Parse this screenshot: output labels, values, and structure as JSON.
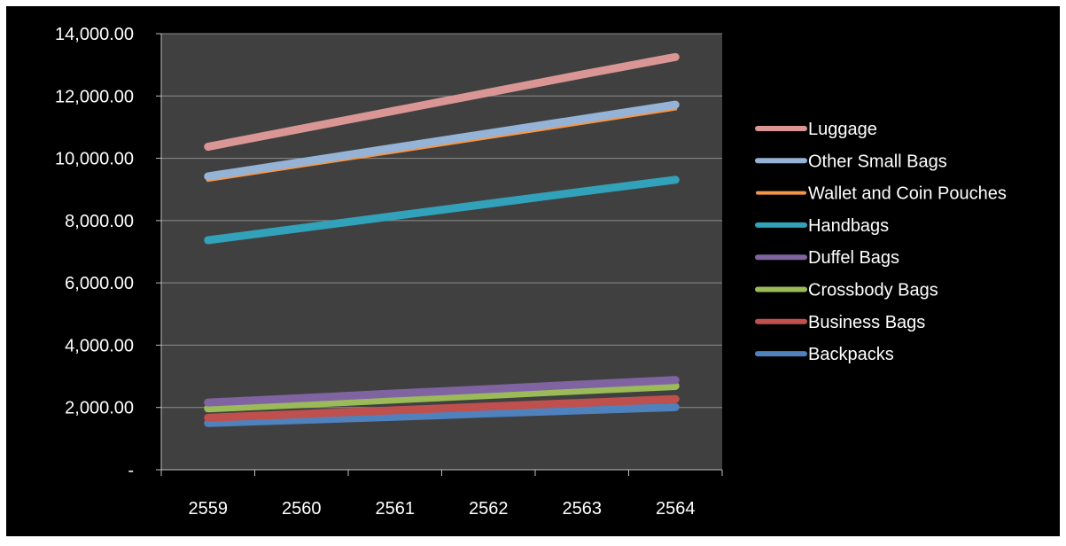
{
  "chart_data": {
    "type": "line",
    "title": "",
    "xlabel": "",
    "ylabel": "",
    "categories": [
      "2559",
      "2560",
      "2561",
      "2562",
      "2563",
      "2564"
    ],
    "ylim": [
      0,
      14000
    ],
    "yticks": [
      0,
      2000,
      4000,
      6000,
      8000,
      10000,
      12000,
      14000
    ],
    "ytick_labels": [
      "-",
      "2,000.00",
      "4,000.00",
      "6,000.00",
      "8,000.00",
      "10,000.00",
      "12,000.00",
      "14,000.00"
    ],
    "grid": true,
    "legend_position": "right",
    "colors": {
      "page_background": "#000000",
      "plot_background": "#404040",
      "gridline": "#8c8c8c",
      "axis": "#bfbfbf",
      "text": "#ffffff"
    },
    "series": [
      {
        "name": "Luggage",
        "color": "#d99694",
        "values": [
          10370,
          10950,
          11530,
          12110,
          12690,
          13250
        ]
      },
      {
        "name": "Other Small Bags",
        "color": "#95b3d7",
        "values": [
          9420,
          9880,
          10340,
          10800,
          11260,
          11720
        ]
      },
      {
        "name": "Wallet and Coin Pouches",
        "color": "#f79646",
        "values": [
          9300,
          9760,
          10210,
          10670,
          11130,
          11590
        ]
      },
      {
        "name": "Handbags",
        "color": "#31a2b9",
        "values": [
          7370,
          7760,
          8150,
          8540,
          8930,
          9310
        ]
      },
      {
        "name": "Duffel Bags",
        "color": "#8064a2",
        "values": [
          2160,
          2300,
          2450,
          2590,
          2740,
          2880
        ]
      },
      {
        "name": "Crossbody Bags",
        "color": "#9bbb59",
        "values": [
          1970,
          2110,
          2260,
          2400,
          2550,
          2690
        ]
      },
      {
        "name": "Business Bags",
        "color": "#c0504d",
        "values": [
          1670,
          1790,
          1910,
          2030,
          2150,
          2270
        ]
      },
      {
        "name": "Backpacks",
        "color": "#4f81bd",
        "values": [
          1500,
          1600,
          1700,
          1810,
          1910,
          2010
        ]
      }
    ]
  }
}
